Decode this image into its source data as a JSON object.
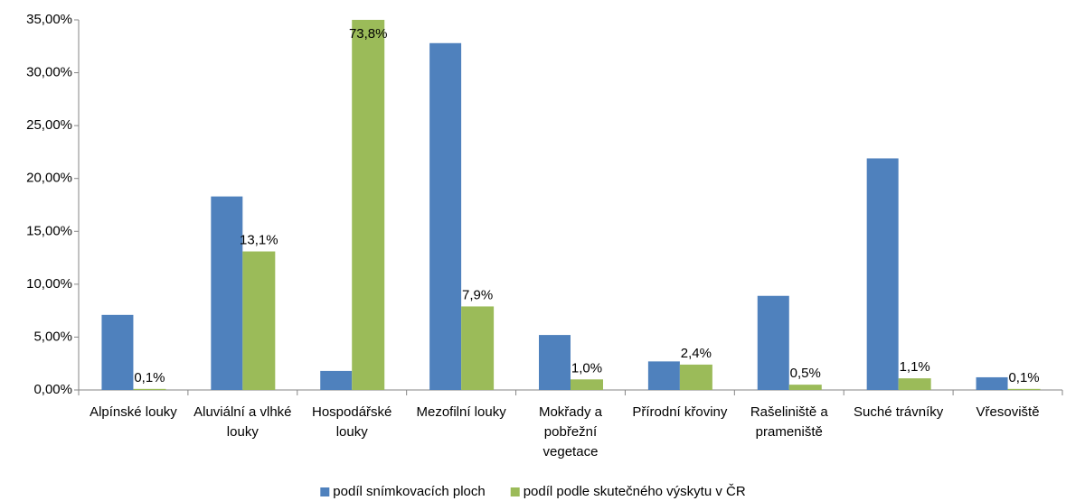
{
  "chart_data": {
    "type": "bar",
    "categories": [
      "Alpínské louky",
      "Aluviální a vlhké louky",
      "Hospodářské louky",
      "Mezofilní louky",
      "Mokřady a pobřežní vegetace",
      "Přírodní křoviny",
      "Rašeliniště a prameniště",
      "Suché trávníky",
      "Vřesoviště"
    ],
    "series": [
      {
        "name": "podíl snímkovacích ploch",
        "color": "#4f81bd",
        "values": [
          7.1,
          18.3,
          1.8,
          32.8,
          5.2,
          2.7,
          8.9,
          21.9,
          1.2
        ]
      },
      {
        "name": "podíl podle skutečného výskytu v ČR",
        "color": "#9bbb59",
        "values": [
          0.1,
          13.1,
          73.8,
          7.9,
          1.0,
          2.4,
          0.5,
          1.1,
          0.1
        ],
        "value_labels": [
          "0,1%",
          "13,1%",
          "73,8%",
          "7,9%",
          "1,0%",
          "2,4%",
          "0,5%",
          "1,1%",
          "0,1%"
        ]
      }
    ],
    "ylim": [
      0,
      35
    ],
    "yticks": [
      {
        "value": 0,
        "label": "0,00%"
      },
      {
        "value": 5,
        "label": "5,00%"
      },
      {
        "value": 10,
        "label": "10,00%"
      },
      {
        "value": 15,
        "label": "15,00%"
      },
      {
        "value": 20,
        "label": "20,00%"
      },
      {
        "value": 25,
        "label": "25,00%"
      },
      {
        "value": 30,
        "label": "30,00%"
      },
      {
        "value": 35,
        "label": "35,00%"
      }
    ],
    "grid": false,
    "legend": "bottom"
  }
}
